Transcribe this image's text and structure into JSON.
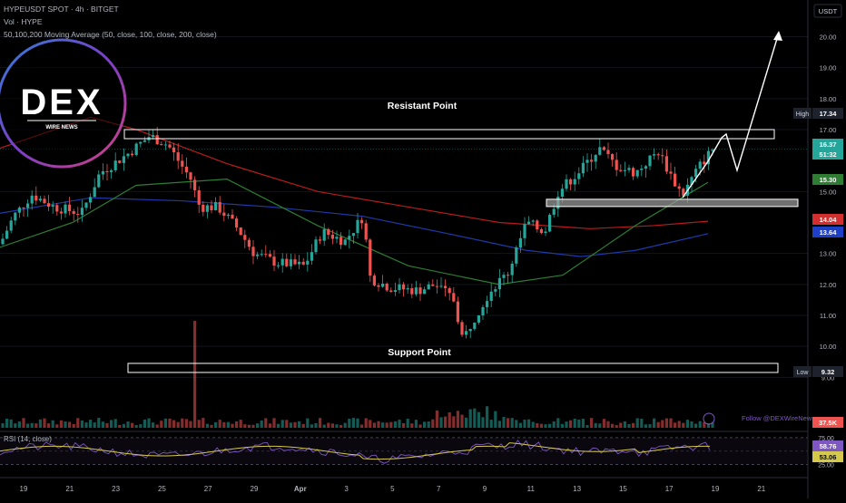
{
  "header": {
    "symbol_line": "HYPEUSDT SPOT · 4h · BITGET",
    "volume_line": "Vol · HYPE",
    "ma_line": "50,100,200 Moving Average (50, close, 100, close, 200, close)"
  },
  "logo": {
    "wordmark": "DEX",
    "subtitle": "WIRE NEWS"
  },
  "currency_label": "USDT",
  "annotations": {
    "resistant": "Resistant Point",
    "support": "Support Point",
    "follow": "Follow @DEXWireNews",
    "rsi_label": "RSI (14, close)"
  },
  "colors": {
    "up": "#26a69a",
    "down": "#ef5350",
    "ma50": "#2e7d32",
    "ma100": "#1e3aa8",
    "ma200": "#b71c1c",
    "rsi": "#7e57c2",
    "rsi_ma": "#d4c94a",
    "price_tag": "#26a69a"
  },
  "price_badges": [
    {
      "label": "High",
      "value": "17.34",
      "color": "#1e222d"
    },
    {
      "label": "",
      "value": "16.37",
      "color": "#26a69a"
    },
    {
      "label": "",
      "value": "51:32",
      "color": "#26a69a"
    },
    {
      "label": "",
      "value": "15.30",
      "color": "#2e7d32"
    },
    {
      "label": "",
      "value": "14.04",
      "color": "#d32f2f"
    },
    {
      "label": "",
      "value": "13.64",
      "color": "#1e40c8"
    },
    {
      "label": "Low",
      "value": "9.32",
      "color": "#1e222d"
    },
    {
      "label": "",
      "value": "37.5K",
      "color": "#ef5350"
    },
    {
      "label": "",
      "value": "58.76",
      "color": "#7e57c2"
    },
    {
      "label": "",
      "value": "53.06",
      "color": "#d4c94a"
    }
  ],
  "chart_data": {
    "type": "candlestick",
    "ylim": [
      8.6,
      20.6
    ],
    "y_ticks": [
      "20.00",
      "19.00",
      "18.00",
      "17.00",
      "15.00",
      "13.00",
      "12.00",
      "11.00",
      "10.00",
      "9.00"
    ],
    "x_ticks": [
      "19",
      "21",
      "23",
      "25",
      "27",
      "29",
      "Apr",
      "3",
      "5",
      "7",
      "9",
      "11",
      "13",
      "15",
      "17",
      "19",
      "21"
    ],
    "rsi_ticks": [
      "75.00",
      "25.00"
    ],
    "high": 17.34,
    "low": 9.32,
    "last_price": 16.37,
    "ma50_last": 15.3,
    "ma100_last": 13.64,
    "ma200_last": 14.04,
    "resistance_zone": [
      16.82,
      17.0
    ],
    "support_zone": [
      9.3,
      9.45
    ],
    "mid_support_zone": [
      14.6,
      14.75
    ],
    "volume_last": "37.5K",
    "rsi_last": 58.76,
    "rsi_ma_last": 53.06
  }
}
